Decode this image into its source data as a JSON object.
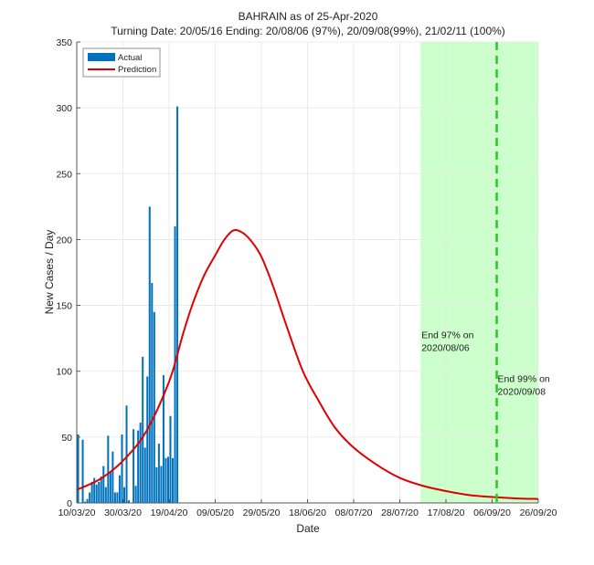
{
  "chart_data": {
    "type": "bar",
    "title": "BAHRAIN as of 25-Apr-2020",
    "subtitle": "Turning Date: 20/05/16  Ending: 20/08/06 (97%), 20/09/08(99%), 21/02/11 (100%)",
    "xlabel": "Date",
    "ylabel": "New Cases / Day",
    "ylim": [
      0,
      350
    ],
    "xlim_days": [
      0,
      200
    ],
    "x_origin_date": "10/03/20",
    "yticks": [
      0,
      50,
      100,
      150,
      200,
      250,
      300,
      350
    ],
    "xtick_days": [
      0,
      20,
      40,
      60,
      80,
      100,
      120,
      140,
      160,
      180,
      200
    ],
    "xtick_labels": [
      "10/03/20",
      "30/03/20",
      "19/04/20",
      "09/05/20",
      "29/05/20",
      "18/06/20",
      "08/07/20",
      "28/07/20",
      "17/08/20",
      "06/09/20",
      "26/09/20"
    ],
    "grid": true,
    "legend_position": "top-left",
    "series": [
      {
        "name": "Actual",
        "kind": "bar",
        "color": "#0072BD",
        "x_days": [
          0,
          1,
          2,
          3,
          4,
          5,
          6,
          7,
          8,
          9,
          10,
          11,
          12,
          13,
          14,
          15,
          16,
          17,
          18,
          19,
          20,
          21,
          22,
          23,
          24,
          25,
          26,
          27,
          28,
          29,
          30,
          31,
          32,
          33,
          34,
          35,
          36,
          37,
          38,
          39,
          40,
          41,
          42,
          43,
          44,
          45
        ],
        "values": [
          52,
          0,
          48,
          1,
          3,
          8,
          16,
          19,
          14,
          16,
          20,
          28,
          12,
          51,
          24,
          39,
          8,
          8,
          21,
          52,
          12,
          74,
          2,
          0,
          56,
          13,
          55,
          61,
          111,
          42,
          96,
          225,
          167,
          145,
          27,
          45,
          28,
          97,
          34,
          35,
          66,
          34,
          210,
          301,
          0,
          0
        ]
      },
      {
        "name": "Prediction",
        "kind": "line",
        "color": "#E00000",
        "x_days": [
          0,
          10,
          20,
          30,
          40,
          46,
          50,
          55,
          60,
          64,
          68,
          72,
          76,
          80,
          85,
          91,
          98,
          105,
          112,
          120,
          130,
          140,
          150,
          160,
          170,
          180,
          190,
          200
        ],
        "values": [
          10,
          18,
          32,
          54,
          92,
          128,
          150,
          172,
          188,
          200,
          207,
          205,
          198,
          187,
          165,
          134,
          100,
          77,
          57,
          42,
          29,
          19,
          13,
          9,
          6,
          4.5,
          3.5,
          3
        ]
      }
    ],
    "shaded_region": {
      "start_day": 149,
      "end_day": 200,
      "color": "#ccffcc"
    },
    "end_line": {
      "day": 182,
      "color": "#22cc22"
    },
    "annotations": [
      {
        "line1": "End 97% on",
        "line2": "2020/08/06",
        "day": 149,
        "value": 125
      },
      {
        "line1": "End 99% on",
        "line2": "2020/09/08",
        "day": 182,
        "value": 92
      }
    ]
  }
}
